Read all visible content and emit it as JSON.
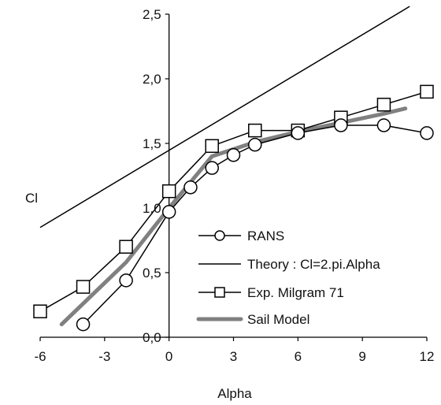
{
  "chart_data": {
    "type": "line",
    "title": "",
    "xlabel": "Alpha",
    "ylabel": "Cl",
    "xlim": [
      -6,
      12
    ],
    "ylim": [
      0,
      2.5
    ],
    "x_ticks": [
      -6,
      -3,
      0,
      3,
      6,
      9,
      12
    ],
    "x_tick_labels": [
      "-6",
      "-3",
      "0",
      "3",
      "6",
      "9",
      "12"
    ],
    "y_ticks": [
      0,
      0.5,
      1.0,
      1.5,
      2.0,
      2.5
    ],
    "y_tick_labels": [
      "0,0",
      "0,5",
      "1,0",
      "1,5",
      "2,0",
      "2,5"
    ],
    "grid": false,
    "legend_position": "bottom-right",
    "series": [
      {
        "name": "RANS",
        "marker": "circle",
        "color": "#000000",
        "x": [
          -4,
          -2,
          0,
          1,
          2,
          3,
          4,
          6,
          8,
          10,
          12
        ],
        "y": [
          0.1,
          0.44,
          0.97,
          1.16,
          1.31,
          1.41,
          1.49,
          1.58,
          1.64,
          1.64,
          1.58
        ]
      },
      {
        "name": "Theory : Cl=2.pi.Alpha",
        "marker": "none",
        "color": "#000000",
        "x": [
          -6,
          11.2
        ],
        "y": [
          0.85,
          2.56
        ]
      },
      {
        "name": "Exp. Milgram 71",
        "marker": "square",
        "color": "#000000",
        "x": [
          -6,
          -4,
          -2,
          0,
          2,
          4,
          6,
          8,
          10,
          12
        ],
        "y": [
          0.2,
          0.39,
          0.7,
          1.13,
          1.48,
          1.6,
          1.6,
          1.7,
          1.8,
          1.9
        ]
      },
      {
        "name": "Sail Model",
        "marker": "none",
        "color": "#808080",
        "x": [
          -5,
          -2,
          0,
          2,
          4,
          6,
          8,
          10,
          11
        ],
        "y": [
          0.1,
          0.58,
          1.0,
          1.4,
          1.51,
          1.59,
          1.66,
          1.73,
          1.77
        ]
      }
    ]
  }
}
